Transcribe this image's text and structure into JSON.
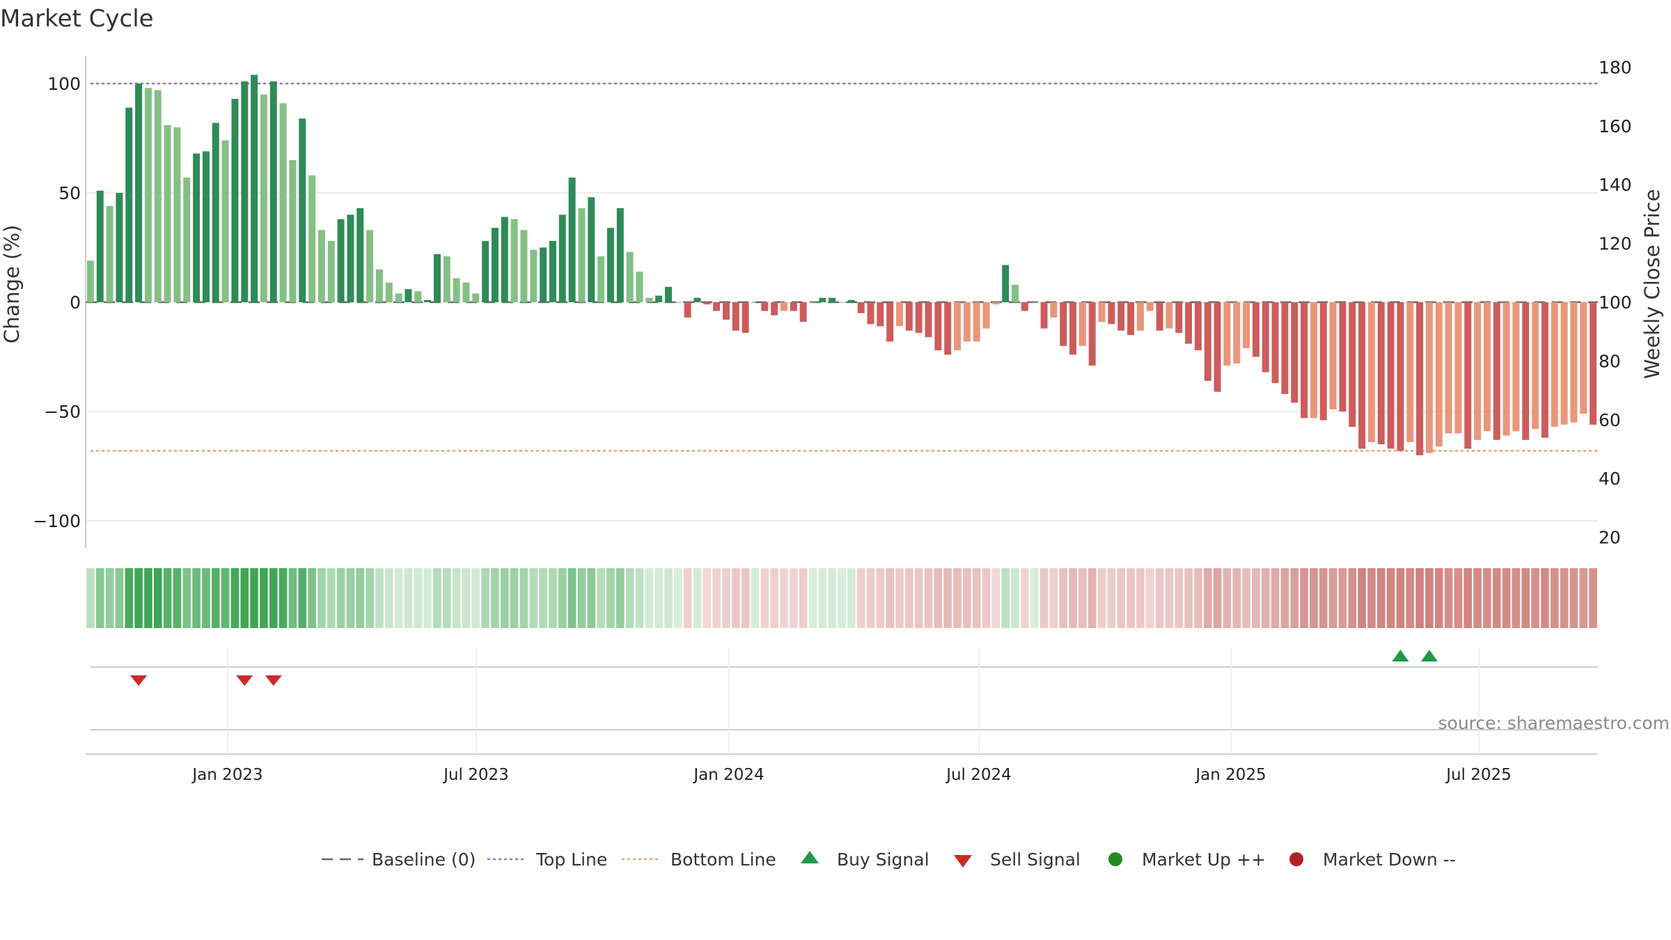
{
  "title": "Market Cycle",
  "source": "source: sharemaestro.com",
  "chart_data": {
    "type": "bar",
    "title": "Market Cycle",
    "ylabel": "Change (%)",
    "y2label": "Weekly Close Price",
    "ylim": [
      -112,
      112
    ],
    "y2lim": [
      16,
      184
    ],
    "yticks": [
      -100,
      -50,
      0,
      50,
      100
    ],
    "y2ticks": [
      20,
      40,
      60,
      80,
      100,
      120,
      140,
      160,
      180
    ],
    "xticks": [
      "Jan 2023",
      "Jul 2023",
      "Jan 2024",
      "Jul 2024",
      "Jan 2025",
      "Jul 2025"
    ],
    "top_line": 100,
    "bottom_line": -68,
    "baseline": 0,
    "grid": true,
    "legend_position": "bottom",
    "colors": {
      "strong_up": "#2e8b57",
      "weak_up": "#84c084",
      "strong_down": "#cd5c5c",
      "weak_down": "#e9967a",
      "top_line": "#9370db",
      "bottom_line": "#f4a460",
      "buy": "#1e9a4a",
      "sell": "#cc2929",
      "market_up": "#228b22",
      "market_down": "#b22222"
    },
    "weekly_change": [
      {
        "v": 19,
        "s": "weak"
      },
      {
        "v": 51,
        "s": "strong"
      },
      {
        "v": 44,
        "s": "weak"
      },
      {
        "v": 50,
        "s": "strong"
      },
      {
        "v": 89,
        "s": "strong"
      },
      {
        "v": 100,
        "s": "strong"
      },
      {
        "v": 98,
        "s": "weak"
      },
      {
        "v": 97,
        "s": "weak"
      },
      {
        "v": 81,
        "s": "weak"
      },
      {
        "v": 80,
        "s": "weak"
      },
      {
        "v": 57,
        "s": "weak"
      },
      {
        "v": 68,
        "s": "strong"
      },
      {
        "v": 69,
        "s": "strong"
      },
      {
        "v": 82,
        "s": "strong"
      },
      {
        "v": 74,
        "s": "weak"
      },
      {
        "v": 93,
        "s": "strong"
      },
      {
        "v": 101,
        "s": "strong"
      },
      {
        "v": 104,
        "s": "strong"
      },
      {
        "v": 95,
        "s": "weak"
      },
      {
        "v": 101,
        "s": "strong"
      },
      {
        "v": 91,
        "s": "weak"
      },
      {
        "v": 65,
        "s": "weak"
      },
      {
        "v": 84,
        "s": "strong"
      },
      {
        "v": 58,
        "s": "weak"
      },
      {
        "v": 33,
        "s": "weak"
      },
      {
        "v": 28,
        "s": "weak"
      },
      {
        "v": 38,
        "s": "strong"
      },
      {
        "v": 40,
        "s": "strong"
      },
      {
        "v": 43,
        "s": "strong"
      },
      {
        "v": 33,
        "s": "weak"
      },
      {
        "v": 15,
        "s": "weak"
      },
      {
        "v": 9,
        "s": "weak"
      },
      {
        "v": 4,
        "s": "weak"
      },
      {
        "v": 6,
        "s": "strong"
      },
      {
        "v": 5,
        "s": "weak"
      },
      {
        "v": 1,
        "s": "strong"
      },
      {
        "v": 22,
        "s": "strong"
      },
      {
        "v": 21,
        "s": "weak"
      },
      {
        "v": 11,
        "s": "weak"
      },
      {
        "v": 9,
        "s": "weak"
      },
      {
        "v": 4,
        "s": "weak"
      },
      {
        "v": 28,
        "s": "strong"
      },
      {
        "v": 34,
        "s": "strong"
      },
      {
        "v": 39,
        "s": "strong"
      },
      {
        "v": 38,
        "s": "weak"
      },
      {
        "v": 33,
        "s": "weak"
      },
      {
        "v": 24,
        "s": "weak"
      },
      {
        "v": 25,
        "s": "strong"
      },
      {
        "v": 28,
        "s": "strong"
      },
      {
        "v": 40,
        "s": "strong"
      },
      {
        "v": 57,
        "s": "strong"
      },
      {
        "v": 43,
        "s": "weak"
      },
      {
        "v": 48,
        "s": "strong"
      },
      {
        "v": 21,
        "s": "weak"
      },
      {
        "v": 34,
        "s": "strong"
      },
      {
        "v": 43,
        "s": "strong"
      },
      {
        "v": 23,
        "s": "weak"
      },
      {
        "v": 14,
        "s": "weak"
      },
      {
        "v": 2,
        "s": "weak"
      },
      {
        "v": 3,
        "s": "strong"
      },
      {
        "v": 7,
        "s": "strong"
      },
      {
        "v": 0,
        "s": "weak"
      },
      {
        "v": -7,
        "s": "strong"
      },
      {
        "v": 2,
        "s": "strong"
      },
      {
        "v": -1,
        "s": "strong"
      },
      {
        "v": -4,
        "s": "strong"
      },
      {
        "v": -8,
        "s": "strong"
      },
      {
        "v": -13,
        "s": "strong"
      },
      {
        "v": -14,
        "s": "strong"
      },
      {
        "v": 0,
        "s": "strong"
      },
      {
        "v": -4,
        "s": "strong"
      },
      {
        "v": -6,
        "s": "strong"
      },
      {
        "v": -4,
        "s": "weak"
      },
      {
        "v": -4,
        "s": "strong"
      },
      {
        "v": -9,
        "s": "strong"
      },
      {
        "v": 0,
        "s": "weak"
      },
      {
        "v": 2,
        "s": "strong"
      },
      {
        "v": 2,
        "s": "strong"
      },
      {
        "v": 0,
        "s": "weak"
      },
      {
        "v": 1,
        "s": "strong"
      },
      {
        "v": -5,
        "s": "strong"
      },
      {
        "v": -10,
        "s": "strong"
      },
      {
        "v": -11,
        "s": "strong"
      },
      {
        "v": -18,
        "s": "strong"
      },
      {
        "v": -11,
        "s": "weak"
      },
      {
        "v": -13,
        "s": "strong"
      },
      {
        "v": -14,
        "s": "strong"
      },
      {
        "v": -16,
        "s": "strong"
      },
      {
        "v": -22,
        "s": "strong"
      },
      {
        "v": -24,
        "s": "strong"
      },
      {
        "v": -22,
        "s": "weak"
      },
      {
        "v": -18,
        "s": "weak"
      },
      {
        "v": -18,
        "s": "weak"
      },
      {
        "v": -12,
        "s": "weak"
      },
      {
        "v": -1,
        "s": "weak"
      },
      {
        "v": 17,
        "s": "strong"
      },
      {
        "v": 8,
        "s": "weak"
      },
      {
        "v": -4,
        "s": "strong"
      },
      {
        "v": 0,
        "s": "weak"
      },
      {
        "v": -12,
        "s": "strong"
      },
      {
        "v": -7,
        "s": "weak"
      },
      {
        "v": -20,
        "s": "strong"
      },
      {
        "v": -24,
        "s": "strong"
      },
      {
        "v": -20,
        "s": "weak"
      },
      {
        "v": -29,
        "s": "strong"
      },
      {
        "v": -9,
        "s": "weak"
      },
      {
        "v": -10,
        "s": "strong"
      },
      {
        "v": -13,
        "s": "strong"
      },
      {
        "v": -15,
        "s": "strong"
      },
      {
        "v": -13,
        "s": "weak"
      },
      {
        "v": -4,
        "s": "weak"
      },
      {
        "v": -13,
        "s": "strong"
      },
      {
        "v": -12,
        "s": "weak"
      },
      {
        "v": -14,
        "s": "strong"
      },
      {
        "v": -19,
        "s": "strong"
      },
      {
        "v": -22,
        "s": "strong"
      },
      {
        "v": -36,
        "s": "strong"
      },
      {
        "v": -41,
        "s": "strong"
      },
      {
        "v": -29,
        "s": "weak"
      },
      {
        "v": -28,
        "s": "weak"
      },
      {
        "v": -21,
        "s": "weak"
      },
      {
        "v": -25,
        "s": "strong"
      },
      {
        "v": -32,
        "s": "strong"
      },
      {
        "v": -37,
        "s": "strong"
      },
      {
        "v": -42,
        "s": "strong"
      },
      {
        "v": -46,
        "s": "strong"
      },
      {
        "v": -53,
        "s": "strong"
      },
      {
        "v": -53,
        "s": "weak"
      },
      {
        "v": -54,
        "s": "strong"
      },
      {
        "v": -49,
        "s": "weak"
      },
      {
        "v": -50,
        "s": "strong"
      },
      {
        "v": -57,
        "s": "strong"
      },
      {
        "v": -67,
        "s": "strong"
      },
      {
        "v": -64,
        "s": "weak"
      },
      {
        "v": -65,
        "s": "strong"
      },
      {
        "v": -67,
        "s": "strong"
      },
      {
        "v": -68,
        "s": "strong"
      },
      {
        "v": -64,
        "s": "weak"
      },
      {
        "v": -70,
        "s": "strong"
      },
      {
        "v": -69,
        "s": "weak"
      },
      {
        "v": -66,
        "s": "weak"
      },
      {
        "v": -60,
        "s": "weak"
      },
      {
        "v": -60,
        "s": "weak"
      },
      {
        "v": -67,
        "s": "strong"
      },
      {
        "v": -63,
        "s": "weak"
      },
      {
        "v": -59,
        "s": "weak"
      },
      {
        "v": -63,
        "s": "strong"
      },
      {
        "v": -61,
        "s": "weak"
      },
      {
        "v": -59,
        "s": "weak"
      },
      {
        "v": -63,
        "s": "strong"
      },
      {
        "v": -58,
        "s": "weak"
      },
      {
        "v": -62,
        "s": "strong"
      },
      {
        "v": -57,
        "s": "weak"
      },
      {
        "v": -56,
        "s": "weak"
      },
      {
        "v": -55,
        "s": "weak"
      },
      {
        "v": -51,
        "s": "weak"
      },
      {
        "v": -56,
        "s": "strong"
      }
    ],
    "buy_signals_week_index": [
      136,
      139
    ],
    "sell_signals_week_index": [
      5,
      16,
      19
    ],
    "legend": [
      {
        "label": "Baseline (0)",
        "marker": "dash"
      },
      {
        "label": "Top Line",
        "marker": "dotted-purple"
      },
      {
        "label": "Bottom Line",
        "marker": "dotted-orange"
      },
      {
        "label": "Buy Signal",
        "marker": "triangle-up"
      },
      {
        "label": "Sell Signal",
        "marker": "triangle-down"
      },
      {
        "label": "Market Up ++",
        "marker": "circle-green"
      },
      {
        "label": "Market Down --",
        "marker": "circle-red"
      }
    ]
  }
}
